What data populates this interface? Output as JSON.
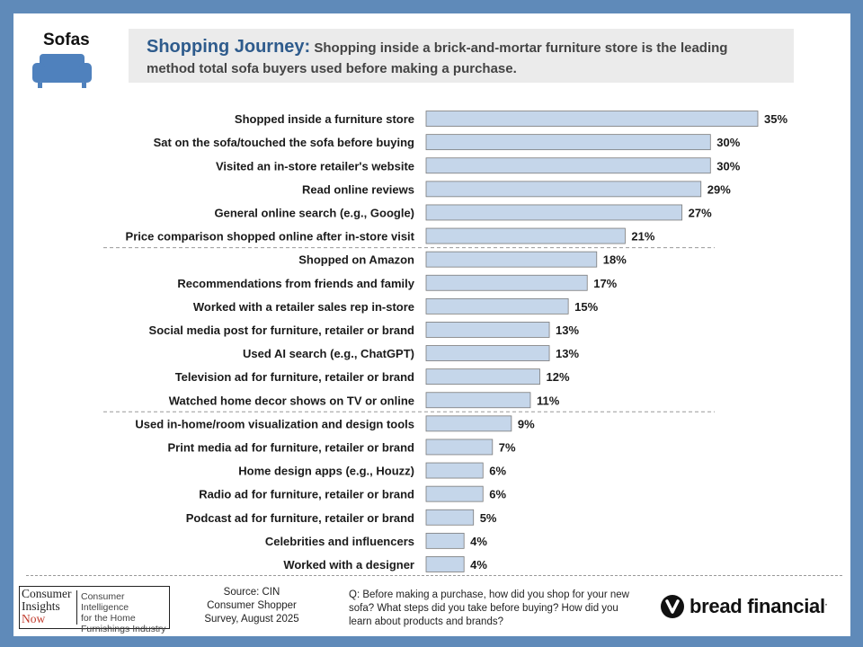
{
  "topic": "Sofas",
  "headline": {
    "title": "Shopping Journey:",
    "text": "Shopping inside a brick-and-mortar furniture store is the leading method total sofa buyers used before making a purchase."
  },
  "chart_data": {
    "type": "bar",
    "orientation": "horizontal",
    "categories": [
      "Shopped inside a furniture store",
      "Sat on the sofa/touched the sofa before buying",
      "Visited an in-store retailer's website",
      "Read online reviews",
      "General online search (e.g., Google)",
      "Price comparison shopped online after in-store visit",
      "Shopped on Amazon",
      "Recommendations from friends and family",
      "Worked with a retailer sales rep in-store",
      "Social media post for furniture, retailer or brand",
      "Used AI search (e.g., ChatGPT)",
      "Television ad for furniture, retailer or brand",
      "Watched home decor shows on TV or online",
      "Used in-home/room visualization and design tools",
      "Print media ad for furniture, retailer or brand",
      "Home design apps (e.g., Houzz)",
      "Radio ad for furniture, retailer or brand",
      "Podcast ad for furniture, retailer or brand",
      "Celebrities and influencers",
      "Worked with a designer"
    ],
    "values": [
      35,
      30,
      30,
      29,
      27,
      21,
      18,
      17,
      15,
      13,
      13,
      12,
      11,
      9,
      7,
      6,
      6,
      5,
      4,
      4
    ],
    "value_labels": [
      "35%",
      "30%",
      "30%",
      "29%",
      "27%",
      "21%",
      "18%",
      "17%",
      "15%",
      "13%",
      "13%",
      "12%",
      "11%",
      "9%",
      "7%",
      "6%",
      "6%",
      "5%",
      "4%",
      "4%"
    ],
    "group_breaks_after": [
      5,
      12
    ],
    "xlim": [
      0,
      35
    ],
    "bar_color": "#c5d6ea",
    "bar_border": "#7a7a7a",
    "grid": false,
    "legend": "none"
  },
  "footer": {
    "logo_left": [
      "Consumer",
      "Insights",
      "Now"
    ],
    "logo_right": [
      "Consumer Intelligence",
      "for the Home",
      "Furnishings Industry"
    ],
    "source": [
      "Source: CIN",
      "Consumer Shopper",
      "Survey, August 2025"
    ],
    "question": "Q: Before making a purchase, how did you shop for your new sofa? What steps did you take before buying? How did you learn about products and brands?",
    "brand": "bread financial",
    "brand_mark": "."
  },
  "colors": {
    "frame": "#5f8ab9",
    "title_accent": "#2e5b8c",
    "headline_bg": "#ebebeb",
    "sofa_icon": "#4f81bd"
  },
  "icons": [
    "sofa-icon",
    "bread-financial-logo-icon"
  ]
}
